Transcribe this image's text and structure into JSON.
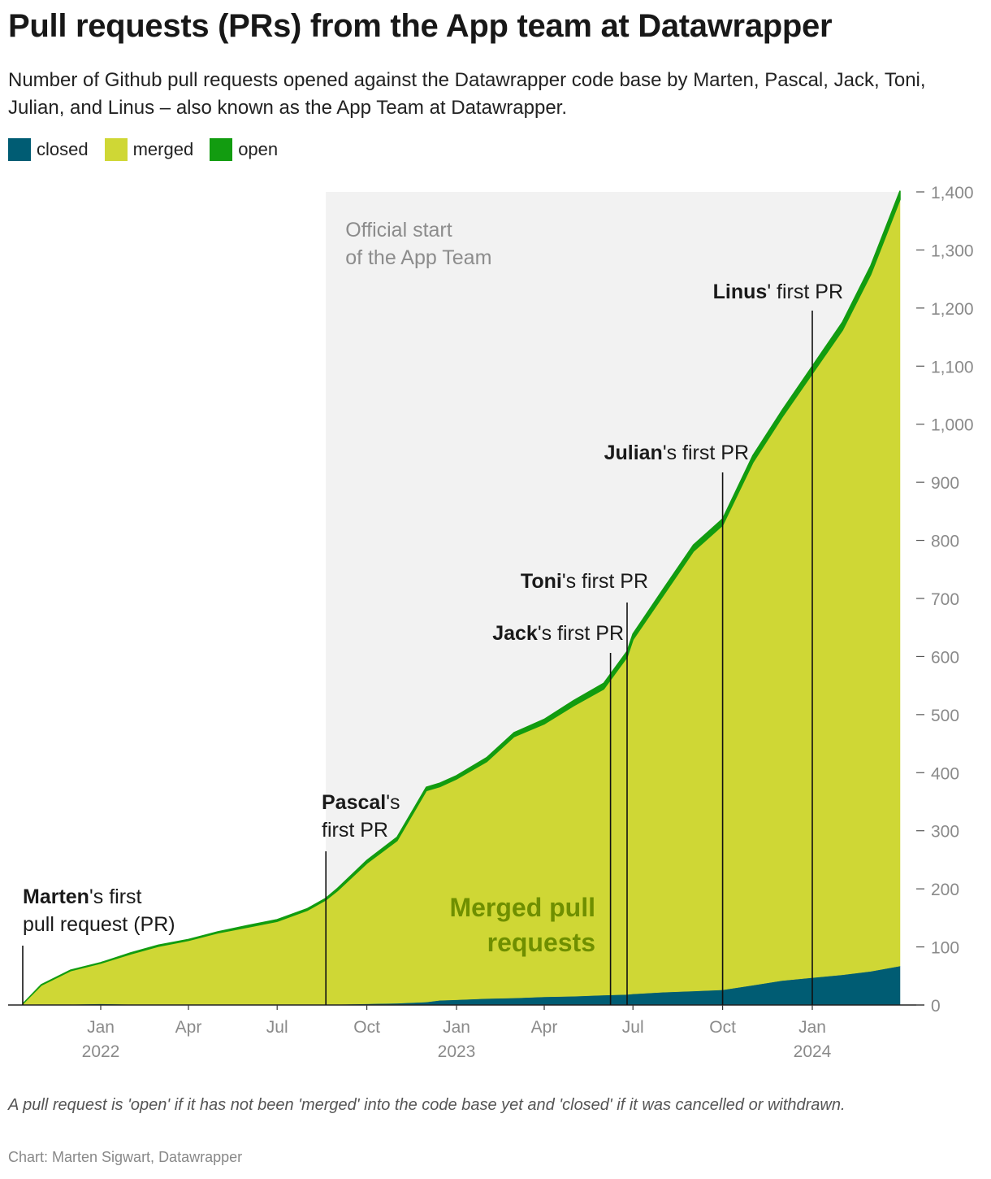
{
  "header": {
    "title": "Pull requests (PRs) from the App team at Datawrapper",
    "subtitle": "Number of Github pull requests opened against the Datawrapper code base by Marten, Pascal, Jack, Toni, Julian, and Linus – also known as the App Team at Datawrapper."
  },
  "legend": [
    {
      "label": "closed",
      "color": "#005c73"
    },
    {
      "label": "merged",
      "color": "#cfd735"
    },
    {
      "label": "open",
      "color": "#129c10"
    }
  ],
  "footer": {
    "notes": "A pull request is 'open' if it has not been 'merged' into the code base yet and 'closed' if it was cancelled or withdrawn.",
    "credit": "Chart: Marten Sigwart, Datawrapper"
  },
  "colors": {
    "closed": "#005c73",
    "merged": "#cfd735",
    "open": "#129c10",
    "highlight_band": "#f2f2f2",
    "merged_label": "#6f8f00",
    "axis_text": "#8a8a8a"
  },
  "chart_data": {
    "type": "area",
    "stacked": true,
    "x_type": "date",
    "xlim": [
      "2021-10-13",
      "2024-03-31"
    ],
    "ylim": [
      0,
      1400
    ],
    "x_ticks": [
      {
        "date": "2022-01-01",
        "label": "Jan",
        "year": "2022"
      },
      {
        "date": "2022-04-01",
        "label": "Apr",
        "year": ""
      },
      {
        "date": "2022-07-01",
        "label": "Jul",
        "year": ""
      },
      {
        "date": "2022-10-01",
        "label": "Oct",
        "year": ""
      },
      {
        "date": "2023-01-01",
        "label": "Jan",
        "year": "2023"
      },
      {
        "date": "2023-04-01",
        "label": "Apr",
        "year": ""
      },
      {
        "date": "2023-07-01",
        "label": "Jul",
        "year": ""
      },
      {
        "date": "2023-10-01",
        "label": "Oct",
        "year": ""
      },
      {
        "date": "2024-01-01",
        "label": "Jan",
        "year": "2024"
      }
    ],
    "y_ticks": [
      {
        "value": 0,
        "label": "0"
      },
      {
        "value": 100,
        "label": "100"
      },
      {
        "value": 200,
        "label": "200"
      },
      {
        "value": 300,
        "label": "300"
      },
      {
        "value": 400,
        "label": "400"
      },
      {
        "value": 500,
        "label": "500"
      },
      {
        "value": 600,
        "label": "600"
      },
      {
        "value": 700,
        "label": "700"
      },
      {
        "value": 800,
        "label": "800"
      },
      {
        "value": 900,
        "label": "900"
      },
      {
        "value": 1000,
        "label": "1,000"
      },
      {
        "value": 1100,
        "label": "1,100"
      },
      {
        "value": 1200,
        "label": "1,200"
      },
      {
        "value": 1300,
        "label": "1,300"
      },
      {
        "value": 1400,
        "label": "1,400"
      }
    ],
    "y_axis_side": "right",
    "grid": false,
    "legend_position": "top-left",
    "series_labels": [
      {
        "name": "merged",
        "text": "Merged pull requests"
      }
    ],
    "dates": [
      "2021-10-13",
      "2021-11-01",
      "2021-12-01",
      "2022-01-01",
      "2022-02-01",
      "2022-03-01",
      "2022-04-01",
      "2022-05-01",
      "2022-06-01",
      "2022-07-01",
      "2022-08-01",
      "2022-08-20",
      "2022-09-01",
      "2022-10-01",
      "2022-11-01",
      "2022-12-01",
      "2022-12-15",
      "2023-01-01",
      "2023-02-01",
      "2023-03-01",
      "2023-04-01",
      "2023-05-01",
      "2023-06-01",
      "2023-06-25",
      "2023-07-01",
      "2023-08-01",
      "2023-09-01",
      "2023-10-01",
      "2023-11-01",
      "2023-12-01",
      "2024-01-01",
      "2024-02-01",
      "2024-03-01",
      "2024-03-31"
    ],
    "series": [
      {
        "name": "closed",
        "values": [
          0,
          1,
          1,
          2,
          1,
          1,
          1,
          1,
          1,
          1,
          1,
          1,
          1,
          2,
          3,
          5,
          8,
          9,
          11,
          12,
          14,
          15,
          17,
          18,
          19,
          22,
          24,
          26,
          34,
          42,
          47,
          52,
          58,
          67
        ]
      },
      {
        "name": "merged",
        "values": [
          2,
          33,
          58,
          70,
          87,
          100,
          110,
          123,
          133,
          143,
          162,
          180,
          196,
          242,
          280,
          364,
          368,
          380,
          408,
          450,
          470,
          500,
          527,
          581,
          610,
          683,
          757,
          800,
          900,
          970,
          1040,
          1110,
          1200,
          1320
        ]
      },
      {
        "name": "open",
        "values": [
          0,
          1,
          1,
          1,
          2,
          2,
          2,
          2,
          3,
          3,
          3,
          3,
          4,
          5,
          6,
          6,
          6,
          6,
          7,
          7,
          8,
          9,
          10,
          10,
          10,
          11,
          11,
          11,
          12,
          12,
          13,
          14,
          15,
          15
        ]
      }
    ],
    "annotations": [
      {
        "date": "2021-10-13",
        "bold": "Marten",
        "lines": [
          "'s first",
          "pull request (PR)"
        ]
      },
      {
        "date": "2022-08-20",
        "bold": "Pascal",
        "lines": [
          "'s",
          "first PR"
        ]
      },
      {
        "date": "2023-06-08",
        "bold": "Jack",
        "lines": [
          "'s first PR"
        ]
      },
      {
        "date": "2023-06-25",
        "bold": "Toni",
        "lines": [
          "'s first PR"
        ]
      },
      {
        "date": "2023-10-01",
        "bold": "Julian",
        "lines": [
          "'s first PR"
        ]
      },
      {
        "date": "2024-01-01",
        "bold": "Linus",
        "lines": [
          "' first PR"
        ]
      }
    ],
    "highlight": {
      "start": "2022-08-20",
      "end": "2024-03-31",
      "label_lines": [
        "Official start",
        "of the App Team"
      ]
    }
  }
}
